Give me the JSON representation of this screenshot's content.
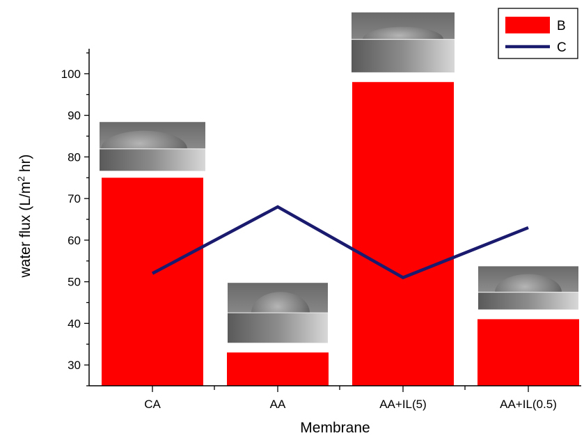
{
  "chart_data": {
    "type": "bar",
    "categories": [
      "CA",
      "AA",
      "AA+IL(5)",
      "AA+IL(0.5)"
    ],
    "series": [
      {
        "name": "B",
        "kind": "bar",
        "color": "#ff0000",
        "values": [
          75,
          33,
          98,
          41
        ]
      },
      {
        "name": "C",
        "kind": "line",
        "color": "#1a1a6e",
        "values": [
          52,
          68,
          51,
          63
        ]
      }
    ],
    "xlabel": "Membrane",
    "ylabel": {
      "prefix": "water flux (L/m",
      "sup": "2",
      "suffix": " hr)"
    },
    "ylim": [
      25,
      106
    ],
    "yticks": [
      30,
      40,
      50,
      60,
      70,
      80,
      90,
      100
    ],
    "grid": false,
    "legend": "top-right",
    "insets": [
      {
        "category": "CA",
        "icon": "contact-angle-droplet-image"
      },
      {
        "category": "AA",
        "icon": "contact-angle-droplet-image"
      },
      {
        "category": "AA+IL(5)",
        "icon": "contact-angle-droplet-image"
      },
      {
        "category": "AA+IL(0.5)",
        "icon": "contact-angle-droplet-image"
      }
    ]
  }
}
